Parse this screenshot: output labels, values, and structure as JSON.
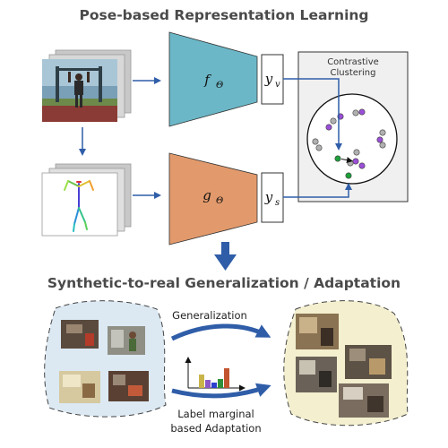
{
  "title_top": "Pose-based Representation Learning",
  "title_bottom": "Synthetic-to-real Generalization / Adaptation",
  "contrastive_line1": "Contrastive",
  "contrastive_line2": "Clustering",
  "encoder_visual": {
    "main": "f",
    "sub": "Θ",
    "color": "#6bb7c7"
  },
  "encoder_pose": {
    "main": "g",
    "sub": "Θ",
    "color": "#e29a6c"
  },
  "embedding_visual": {
    "main": "y",
    "sub": "v"
  },
  "embedding_pose": {
    "main": "y",
    "sub": "s"
  },
  "generalization_label": "Generalization",
  "adaptation_label_line1": "Label marginal",
  "adaptation_label_line2": "based Adaptation",
  "colors": {
    "arrow_blue": "#2f5da8",
    "synthetic_blob": "#dce9f3",
    "real_blob": "#f3efcf",
    "point_grey": "#b0b0b0",
    "point_purple": "#9a4fd6",
    "point_green": "#1e9f3a"
  },
  "histogram_bar_colors": [
    "#c9b44a",
    "#8a59c6",
    "#2d3fcf",
    "#2f8f3a",
    "#c2552f"
  ]
}
